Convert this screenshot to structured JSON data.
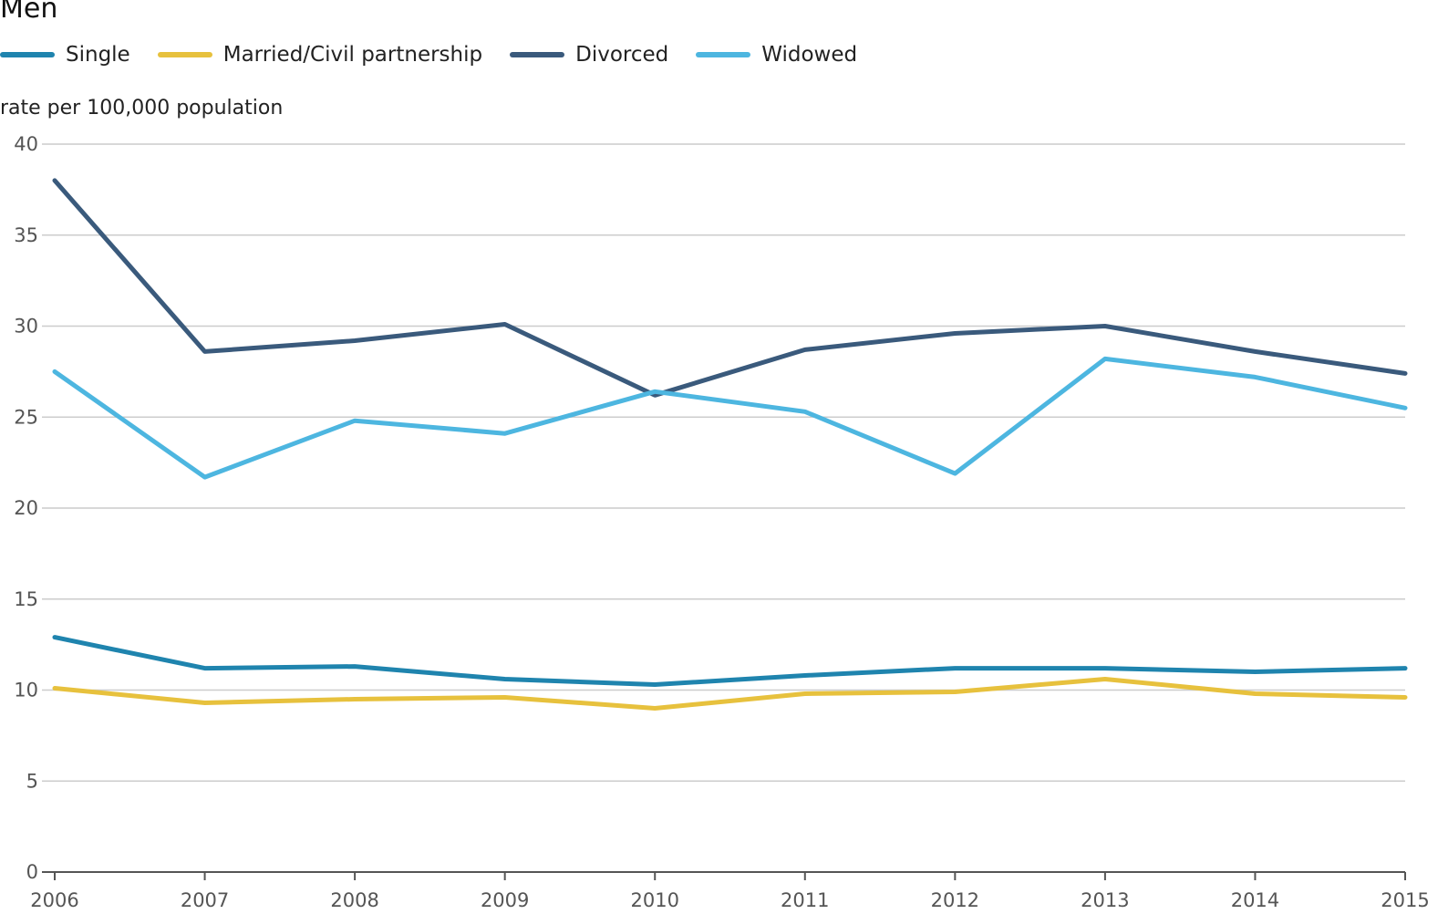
{
  "chart_data": {
    "type": "line",
    "title": "Men",
    "ylabel": "rate per 100,000 population",
    "xlabel": "",
    "x": [
      2006,
      2007,
      2008,
      2009,
      2010,
      2011,
      2012,
      2013,
      2014,
      2015
    ],
    "x_tick_labels": [
      "2006",
      "2007",
      "2008",
      "2009",
      "2010",
      "2011",
      "2012",
      "2013",
      "2014",
      "2015"
    ],
    "ylim": [
      0,
      40
    ],
    "y_ticks": [
      0,
      5,
      10,
      15,
      20,
      25,
      30,
      35,
      40
    ],
    "grid": true,
    "legend_position": "top-left",
    "series": [
      {
        "name": "Single",
        "color": "#1f84ae",
        "values": [
          12.9,
          11.2,
          11.3,
          10.6,
          10.3,
          10.8,
          11.2,
          11.2,
          11.0,
          11.2
        ]
      },
      {
        "name": "Married/Civil partnership",
        "color": "#e7c13d",
        "values": [
          10.1,
          9.3,
          9.5,
          9.6,
          9.0,
          9.8,
          9.9,
          10.6,
          9.8,
          9.6
        ]
      },
      {
        "name": "Divorced",
        "color": "#3a5a7c",
        "values": [
          38.0,
          28.6,
          29.2,
          30.1,
          26.2,
          28.7,
          29.6,
          30.0,
          28.6,
          27.4
        ]
      },
      {
        "name": "Widowed",
        "color": "#4db6e0",
        "values": [
          27.5,
          21.7,
          24.8,
          24.1,
          26.4,
          25.3,
          21.9,
          28.2,
          27.2,
          25.5
        ]
      }
    ]
  },
  "colors": {
    "grid": "#cccccc",
    "axis": "#555555",
    "tick_text": "#555555"
  }
}
